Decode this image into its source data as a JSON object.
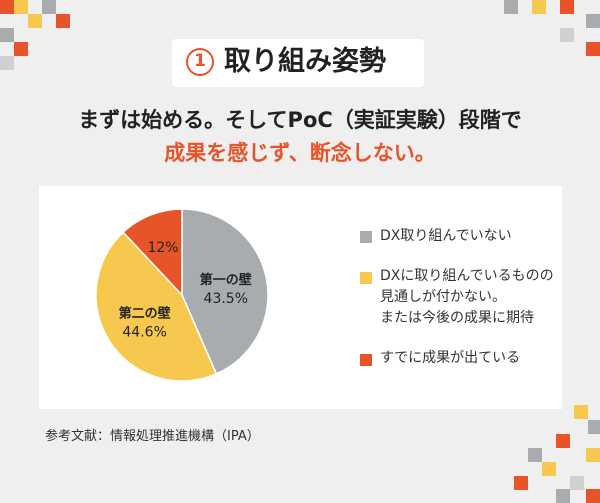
{
  "badge": {
    "number": "1",
    "title": "取り組み姿勢"
  },
  "headline": {
    "line1": "まずは始める。そしてPoC（実証実験）段階で",
    "line2": "成果を感じず、断念しない。"
  },
  "chart_data": {
    "type": "pie",
    "slices": [
      {
        "label": "DX取り組んでいない",
        "value": 43.5,
        "inside_label": "第一の壁",
        "value_label": "43.5%",
        "color": "#a9acaf"
      },
      {
        "label": "DXに取り組んでいるものの\n見通しが付かない。\nまたは今後の成果に期待",
        "value": 44.6,
        "inside_label": "第二の壁",
        "value_label": "44.6%",
        "color": "#f7c84e"
      },
      {
        "label": "すでに成果が出ている",
        "value": 12,
        "inside_label": "",
        "value_label": "12%",
        "color": "#e8542a"
      }
    ]
  },
  "footer": {
    "source": "参考文献：情報処理推進機構（IPA）"
  },
  "colors": {
    "accent": "#e8542a",
    "gray": "#a9acaf",
    "yellow": "#f7c84e",
    "bg": "#efefef"
  }
}
